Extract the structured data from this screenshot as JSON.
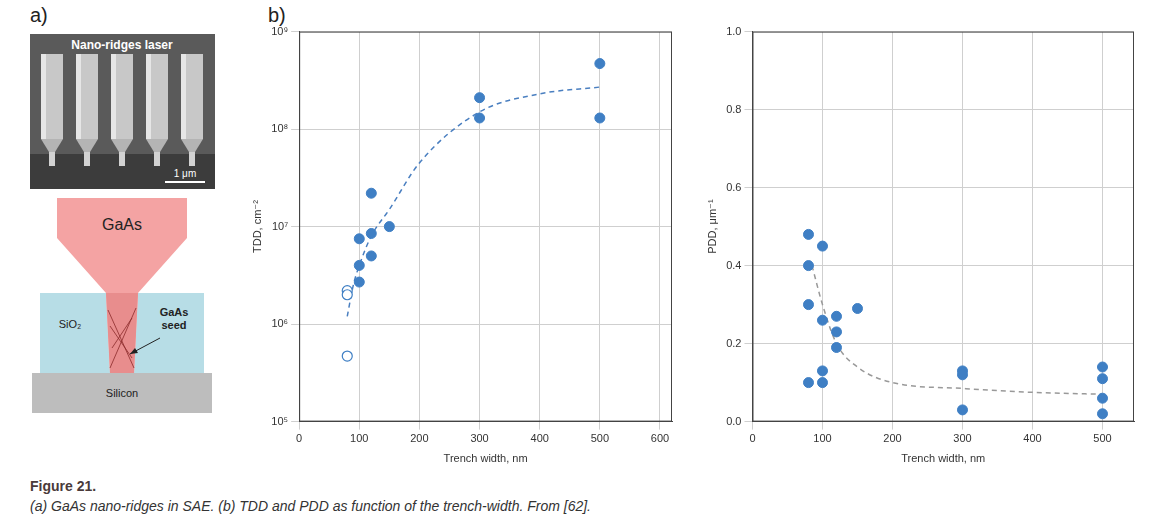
{
  "figure": {
    "panels": {
      "a": {
        "label": "a)",
        "image_label": "Nano-ridges laser",
        "scale_bar": "1 μm",
        "schematic": {
          "top": "GaAs",
          "left": "SiO₂",
          "seed": "GaAs seed",
          "bottom": "Silicon"
        }
      },
      "b": {
        "label": "b)"
      }
    },
    "caption": {
      "title": "Figure 21.",
      "text": "(a) GaAs nano-ridges in SAE. (b) TDD and PDD as function of the trench-width. From [62]."
    }
  },
  "chart_data": [
    {
      "type": "scatter",
      "x_label": "Trench width, nm",
      "y_label": "TDD, cm⁻²",
      "log": "y",
      "grid": true,
      "xlim": [
        0,
        620
      ],
      "xticks": [
        0,
        100,
        200,
        300,
        400,
        500,
        600
      ],
      "ylim": [
        100000,
        1000000000
      ],
      "yticks": [
        {
          "value": 100000,
          "label": "10⁵"
        },
        {
          "value": 1000000,
          "label": "10⁶"
        },
        {
          "value": 10000000,
          "label": "10⁷"
        },
        {
          "value": 100000000,
          "label": "10⁸"
        },
        {
          "value": 1000000000,
          "label": "10⁹"
        }
      ],
      "series": [
        {
          "color": "#3f7fc4",
          "marker": "circle",
          "x": [
            100,
            100,
            100,
            120,
            120,
            120,
            150,
            300,
            300,
            500,
            500
          ],
          "values": [
            7500000,
            4000000,
            2700000,
            22000000,
            8500000,
            5000000,
            10000000,
            210000000,
            130000000,
            470000000,
            130000000
          ]
        },
        {
          "color": "#3f7fc4",
          "marker": "open_circle",
          "x": [
            80,
            80,
            80
          ],
          "values": [
            2200000,
            2000000,
            470000
          ]
        },
        {
          "type": "line",
          "color": "#4a7fc0",
          "marker": "none",
          "line_style": "dashed",
          "x": [
            80,
            90,
            100,
            120,
            150,
            200,
            300,
            400,
            500
          ],
          "values": [
            1200000,
            2500000,
            4000000,
            8000000,
            15000000,
            45000000,
            150000000,
            230000000,
            270000000
          ]
        }
      ]
    },
    {
      "type": "scatter",
      "x_label": "Trench width, nm",
      "y_label": "PDD, μm⁻¹",
      "grid": true,
      "xlim": [
        0,
        545
      ],
      "xticks": [
        0,
        100,
        200,
        300,
        400,
        500
      ],
      "ylim": [
        0,
        1
      ],
      "yticks": [
        {
          "value": 0,
          "label": "0.0"
        },
        0.2,
        0.4,
        0.6,
        0.8,
        {
          "value": 1,
          "label": "1.0"
        }
      ],
      "series": [
        {
          "color": "#3f7fc4",
          "marker": "circle",
          "x": [
            80,
            80,
            80,
            80,
            100,
            100,
            100,
            100,
            120,
            120,
            120,
            150,
            300,
            300,
            300,
            500,
            500,
            500,
            500
          ],
          "values": [
            0.48,
            0.4,
            0.3,
            0.1,
            0.45,
            0.26,
            0.13,
            0.1,
            0.27,
            0.23,
            0.19,
            0.29,
            0.13,
            0.12,
            0.03,
            0.14,
            0.11,
            0.06,
            0.02
          ]
        },
        {
          "type": "line",
          "color": "#999999",
          "marker": "none",
          "line_style": "dashed",
          "x": [
            85,
            100,
            120,
            150,
            200,
            300,
            400,
            500
          ],
          "values": [
            0.4,
            0.3,
            0.2,
            0.14,
            0.1,
            0.085,
            0.075,
            0.07
          ]
        }
      ]
    }
  ]
}
